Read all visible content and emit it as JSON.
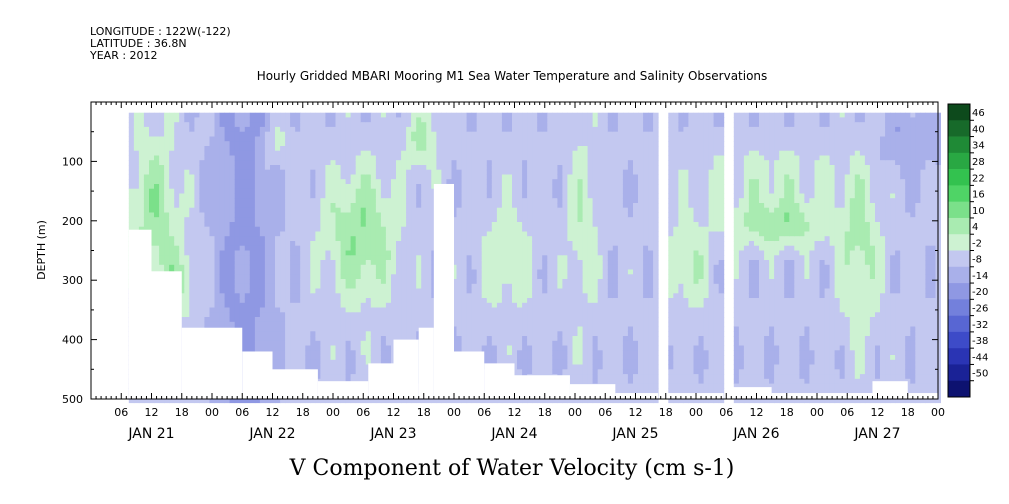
{
  "meta": {
    "longitude": "LONGITUDE : 122W(-122)",
    "latitude": "LATITUDE : 36.8N",
    "year": "YEAR : 2012"
  },
  "chart_data": {
    "type": "heatmap",
    "title": "Hourly Gridded MBARI Mooring M1 Sea Water Temperature and Salinity Observations",
    "xlabel": "V Component of Water Velocity (cm s-1)",
    "ylabel": "DEPTH (m)",
    "y_reversed": true,
    "ylim": [
      500,
      0
    ],
    "y_ticks": [
      100,
      200,
      300,
      400,
      500
    ],
    "xlim_hours": [
      0,
      168
    ],
    "x_hour_ticks": [
      "06",
      "12",
      "18",
      "00",
      "06",
      "12",
      "18",
      "00",
      "06",
      "12",
      "18",
      "00",
      "06",
      "12",
      "18",
      "00",
      "06",
      "12",
      "18",
      "00",
      "06",
      "12",
      "18",
      "00",
      "06",
      "12",
      "18",
      "00"
    ],
    "day_labels": [
      "JAN 21",
      "JAN 22",
      "JAN 23",
      "JAN 24",
      "JAN 25",
      "JAN 26",
      "JAN 27"
    ],
    "colorbar": {
      "levels": [
        48,
        46,
        40,
        34,
        28,
        22,
        16,
        10,
        4,
        -2,
        -8,
        -14,
        -20,
        -26,
        -32,
        -38,
        -44,
        -50
      ],
      "labels": [
        "46",
        "40",
        "34",
        "28",
        "22",
        "16",
        "10",
        "4",
        "-2",
        "-8",
        "-14",
        "-20",
        "-26",
        "-32",
        "-38",
        "-44",
        "-50"
      ],
      "colors": [
        "#0d4a1c",
        "#176a2a",
        "#1f8a36",
        "#29a843",
        "#33c24f",
        "#4fd466",
        "#7be08a",
        "#a9ebb1",
        "#cdf2d2",
        "#c3c8f0",
        "#a9b0ea",
        "#8f98e3",
        "#7380dc",
        "#5866d3",
        "#3d4bc8",
        "#2a34b4",
        "#1a2296",
        "#0d1270"
      ]
    },
    "field": {
      "description_free": true,
      "depth_top": 18,
      "depth_bottom": 500,
      "data_start_hour": 7.5,
      "gaps_hours": [
        [
          112.5,
          114.0
        ],
        [
          125.5,
          127.0
        ]
      ]
    }
  }
}
